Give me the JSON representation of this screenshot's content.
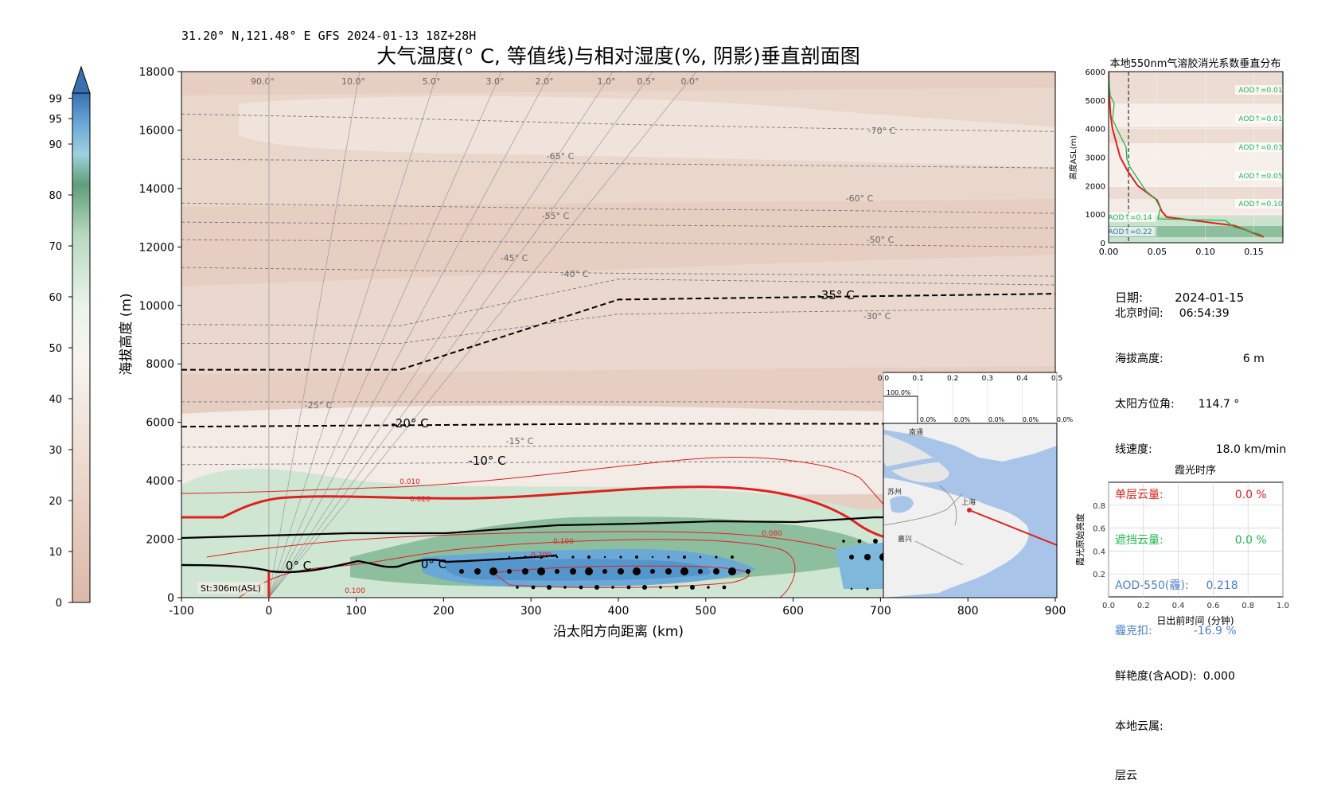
{
  "header": {
    "subtitle": "31.20° N,121.48° E GFS 2024-01-13 18Z+28H",
    "title": "大气温度(° C, 等值线)与相对湿度(%, 阴影)垂直剖面图"
  },
  "colorbar": {
    "ticks": [
      "0",
      "10",
      "20",
      "30",
      "40",
      "50",
      "60",
      "70",
      "80",
      "90",
      "95",
      "99"
    ]
  },
  "main_chart": {
    "xlabel": "沿太阳方向距离 (km)",
    "ylabel": "海拔高度 (m)",
    "xticks": [
      "-100",
      "0",
      "100",
      "200",
      "300",
      "400",
      "500",
      "600",
      "700",
      "800",
      "900"
    ],
    "yticks": [
      "0",
      "2000",
      "4000",
      "6000",
      "8000",
      "10000",
      "12000",
      "14000",
      "16000",
      "18000"
    ],
    "angle_labels": [
      "90.0°",
      "10.0°",
      "5.0°",
      "3.0°",
      "2.0°",
      "1.0°",
      "0.5°",
      "0.0°"
    ],
    "temp_labels": [
      "-70° C",
      "-65° C",
      "-60° C",
      "-55° C",
      "-50° C",
      "-45° C",
      "-40° C",
      "-35° C",
      "-30° C",
      "-25° C",
      "-20° C",
      "-15° C",
      "-10° C",
      "0° C",
      "0° C"
    ],
    "aod_labels": [
      "0.010",
      "0.020",
      "0.100",
      "0.080",
      "0.200",
      "0.100"
    ],
    "station_label": "St:306m(ASL)"
  },
  "inset_bar": {
    "xticks": [
      "0.0",
      "0.1",
      "0.2",
      "0.3",
      "0.4",
      "0.5"
    ],
    "value_label": "100.0%",
    "zero_labels": [
      "0.0%",
      "0.0%",
      "0.0%",
      "0.0%",
      "0.0%"
    ]
  },
  "map": {
    "cities": [
      "南通",
      "苏州",
      "上海",
      "嘉兴"
    ]
  },
  "aod_profile": {
    "title": "本地550nm气溶胶消光系数垂直分布",
    "ylabel": "高度ASL(m)",
    "xticks": [
      "0.00",
      "0.05",
      "0.10",
      "0.15"
    ],
    "yticks": [
      "0",
      "1000",
      "2000",
      "3000",
      "4000",
      "5000",
      "6000"
    ],
    "labels": [
      "AOD↑=0.01",
      "AOD↑=0.01",
      "AOD↑=0.03",
      "AOD↑=0.05",
      "AOD↑=0.10",
      "AOD↑=0.14",
      "AOD↑=0.22"
    ]
  },
  "info": {
    "date_label": "日期:",
    "date_value": "2024-01-15",
    "time_label": "北京时间:",
    "time_value": "06:54:39",
    "alt_label": "海拔高度:",
    "alt_value": "6 m",
    "azimuth_label": "太阳方位角:",
    "azimuth_value": "114.7 °",
    "speed_label": "线速度:",
    "speed_value": "18.0 km/min",
    "single_cloud_label": "单层云量:",
    "single_cloud_value": "0.0 %",
    "block_cloud_label": "遮挡云量:",
    "block_cloud_value": "0.0 %",
    "aod_label": "AOD-550(霾):",
    "aod_value": "0.218",
    "haze_label": "霾克扣:",
    "haze_value": "-16.9 %",
    "vivid_label": "鲜艳度(含AOD):",
    "vivid_value": "0.000",
    "cloud_type_label": "本地云属:",
    "cloud_type_value": "层云"
  },
  "timeseries": {
    "title": "霞光时序",
    "xlabel": "日出前时间 (分钟)",
    "ylabel": "霞光原始亮度",
    "xticks": [
      "0.0",
      "0.2",
      "0.4",
      "0.6",
      "0.8",
      "1.0"
    ],
    "yticks": [
      "0.2",
      "0.4",
      "0.6",
      "0.8"
    ]
  },
  "chart_data": [
    {
      "type": "heatmap",
      "title": "大气温度(° C, 等值线)与相对湿度(%, 阴影)垂直剖面图",
      "xlabel": "沿太阳方向距离 (km)",
      "ylabel": "海拔高度 (m)",
      "xlim": [
        -100,
        900
      ],
      "ylim": [
        0,
        18000
      ],
      "colorbar_range": [
        0,
        100
      ],
      "colors": {
        "dry": "#e8d2c6",
        "mid": "#f3ece6",
        "moist": "#bfdcc4",
        "wet": "#7fb592",
        "cloud": "#6aa8d8",
        "rh_line": "#e02020",
        "freeze": "#000000"
      },
      "isotherms": [
        {
          "label": "-70° C",
          "y": [
            16550,
            16400,
            16200,
            16050,
            15950
          ]
        },
        {
          "label": "-65° C",
          "y": [
            15000,
            14950,
            14850,
            14780,
            14700
          ]
        },
        {
          "label": "-60° C",
          "y": [
            13500,
            13400,
            13300,
            13250,
            13150
          ]
        },
        {
          "label": "-55° C",
          "y": [
            12850,
            12800,
            12750,
            12700,
            12650
          ]
        },
        {
          "label": "-50° C",
          "y": [
            12250,
            12200,
            12150,
            12080,
            12000
          ]
        },
        {
          "label": "-45° C",
          "y": [
            11300,
            11200,
            11100,
            11050,
            11000
          ]
        },
        {
          "label": "-40° C",
          "y": [
            9350,
            9300,
            10900,
            10800,
            10700
          ]
        },
        {
          "label": "-35° C",
          "y": [
            7800,
            7800,
            10200,
            10300,
            10400
          ]
        },
        {
          "label": "-30° C",
          "y": [
            8700,
            8700,
            9700,
            9800,
            9900
          ]
        },
        {
          "label": "-25° C",
          "y": [
            6700,
            6700,
            6700,
            6700,
            6700
          ]
        },
        {
          "label": "-20° C",
          "y": [
            5850,
            5900,
            5950,
            5950,
            5950
          ]
        },
        {
          "label": "-15° C",
          "y": [
            5150,
            5150,
            5200,
            5200,
            5200
          ]
        },
        {
          "label": "-10° C",
          "y": [
            4550,
            4600,
            4650,
            4650,
            4700
          ]
        },
        {
          "label": "0° C",
          "y": [
            1100,
            800,
            900,
            2200,
            2700
          ]
        }
      ],
      "isotherm_x": [
        -100,
        150,
        400,
        650,
        900
      ]
    },
    {
      "type": "line",
      "title": "本地550nm气溶胶消光系数垂直分布",
      "xlabel": "",
      "ylabel": "高度ASL(m)",
      "xlim": [
        0,
        0.18
      ],
      "ylim": [
        0,
        6000
      ],
      "x": [
        0.16,
        0.13,
        0.06,
        0.055,
        0.05,
        0.03,
        0.02,
        0.012,
        0.008,
        0.004,
        0.002,
        0.001,
        0.0
      ],
      "y": [
        200,
        600,
        900,
        1100,
        1500,
        2000,
        2500,
        3000,
        3500,
        4000,
        4500,
        5000,
        6000
      ]
    },
    {
      "type": "line",
      "title": "霞光时序",
      "xlabel": "日出前时间 (分钟)",
      "ylabel": "霞光原始亮度",
      "xlim": [
        0,
        1
      ],
      "ylim": [
        0,
        1
      ],
      "x": [],
      "y": []
    }
  ]
}
